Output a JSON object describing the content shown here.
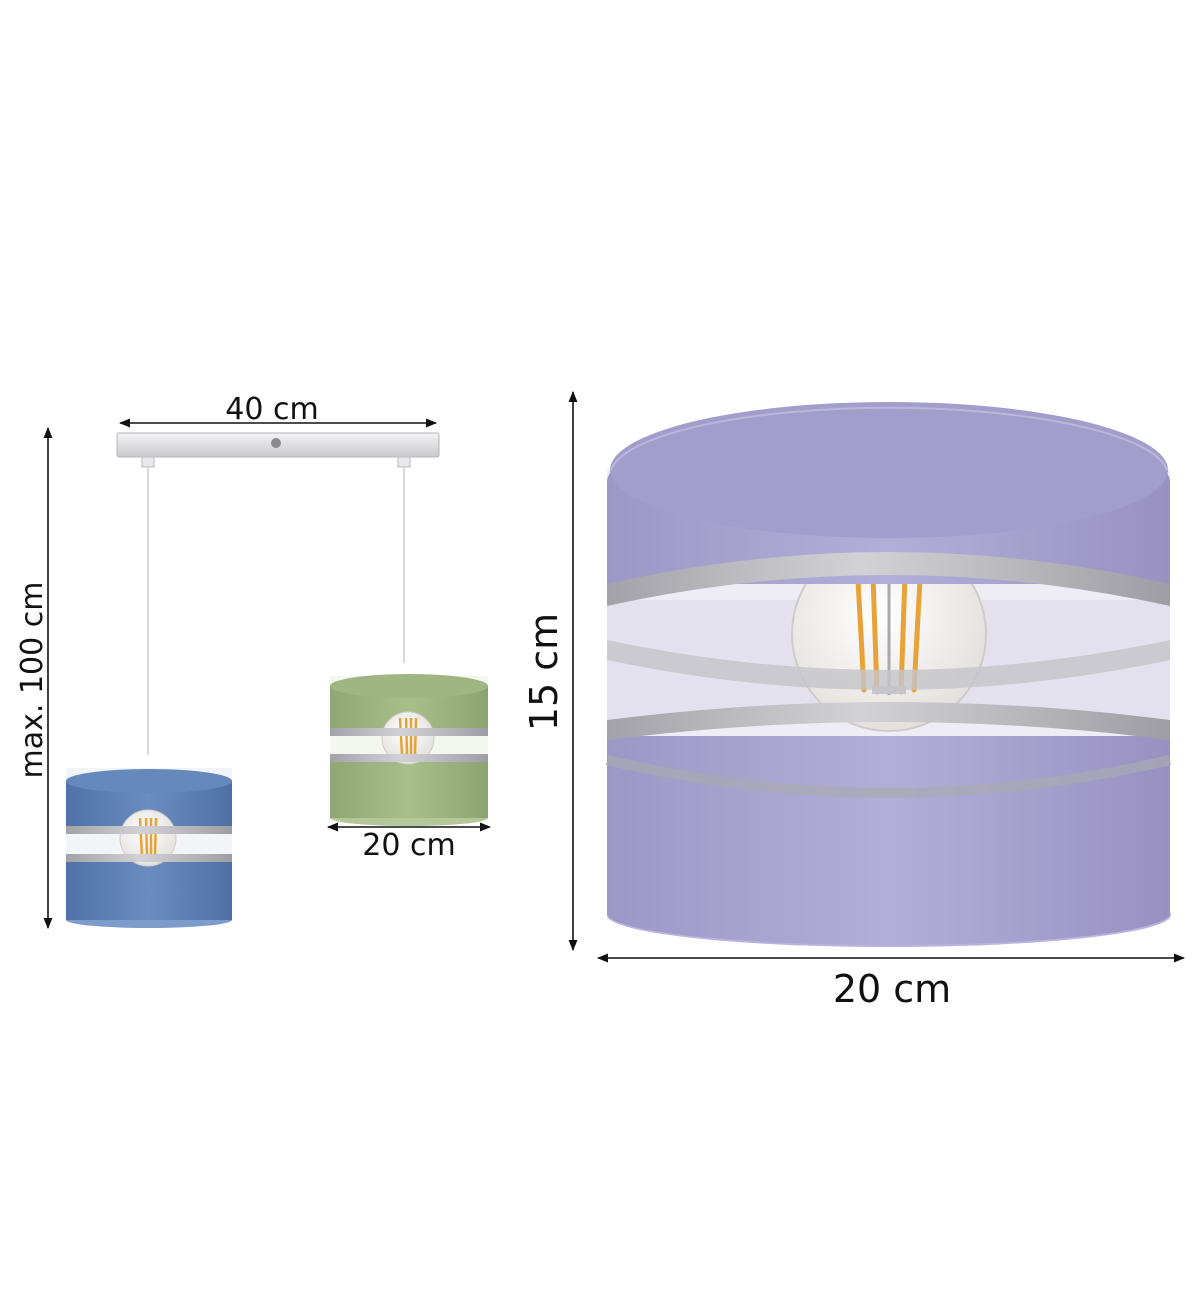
{
  "dimensions": {
    "bar_width": "40 cm",
    "max_height": "max. 100 cm",
    "small_shade_width": "20 cm",
    "large_shade_height": "15 cm",
    "large_shade_width": "20 cm"
  },
  "colors": {
    "blue_shade": "#5f82b8",
    "green_shade": "#9cb47e",
    "lilac_shade": "#a9a3cf",
    "silver_band": "#b9b9bd",
    "bulb_glass": "#f3f1ee",
    "filament": "#e8a23a",
    "rail": "#d8d8da",
    "arrow": "#111111"
  },
  "icons": {
    "arrow": "double-headed-arrow"
  }
}
